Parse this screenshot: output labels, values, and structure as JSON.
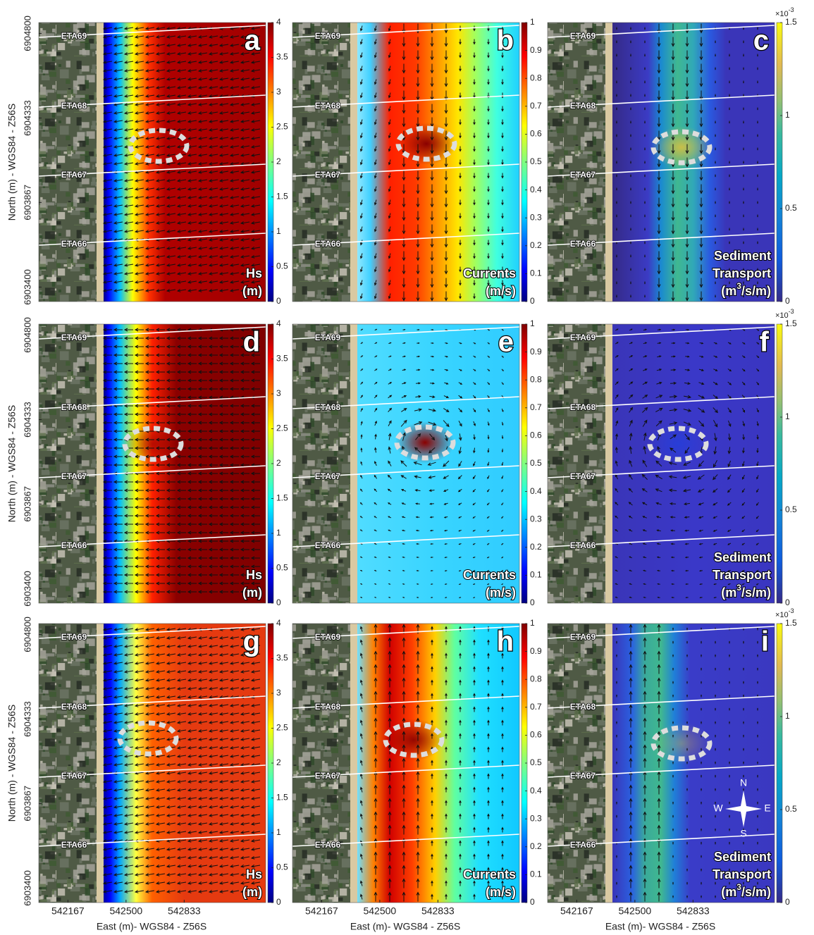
{
  "axes": {
    "xlabel": "East (m)- WGS84 - Z56S",
    "ylabel": "North (m) - WGS84 - Z56S",
    "xlim": [
      542000,
      543300
    ],
    "ylim": [
      6903320,
      6904860
    ],
    "xticks": [
      542167,
      542500,
      542833
    ],
    "yticks": [
      6903400,
      6903867,
      6904333,
      6904800
    ]
  },
  "transects": [
    "ETA69",
    "ETA68",
    "ETA67",
    "ETA66"
  ],
  "panel_letters": [
    [
      "a",
      "b",
      "c"
    ],
    [
      "d",
      "e",
      "f"
    ],
    [
      "g",
      "h",
      "i"
    ]
  ],
  "colorbars": [
    {
      "label": [
        "Hs",
        "(m)"
      ],
      "colormap": "jet",
      "lim": [
        0,
        4
      ],
      "ticks": [
        0,
        0.5,
        1,
        1.5,
        2,
        2.5,
        3,
        3.5,
        4
      ]
    },
    {
      "label": [
        "Currents",
        "(m/s)"
      ],
      "colormap": "jet",
      "lim": [
        0,
        1
      ],
      "ticks": [
        0,
        0.1,
        0.2,
        0.3,
        0.4,
        0.5,
        0.6,
        0.7,
        0.8,
        0.9,
        1
      ]
    },
    {
      "label": [
        "Sediment",
        "Transport",
        {
          "pre": "(m",
          "sup": "3",
          "post": "/s/m)"
        }
      ],
      "colormap": "parula",
      "lim": [
        0,
        1.5
      ],
      "ticks": [
        0,
        0.5,
        1,
        1.5
      ],
      "multiplier": {
        "base": "×10",
        "exponent": "-3"
      }
    }
  ],
  "compass": {
    "north": "N",
    "south": "S",
    "east": "E",
    "west": "W"
  }
}
